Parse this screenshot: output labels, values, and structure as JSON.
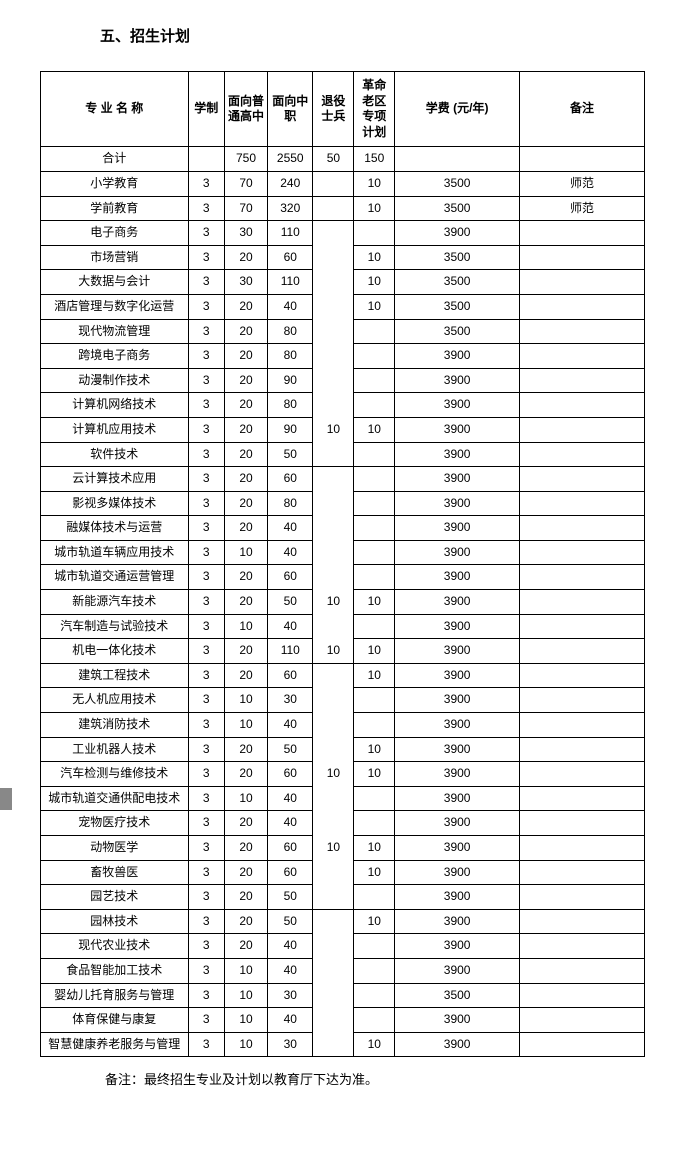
{
  "title": "五、招生计划",
  "headers": {
    "name": "专 业 名 称",
    "xuezhi": "学制",
    "col1": "面向普通高中",
    "col2": "面向中职",
    "col3": "退役士兵",
    "col4": "革命老区专项计划",
    "fee": "学费\n(元/年)",
    "note": "备注"
  },
  "rows": [
    {
      "g": 0,
      "name": "合计",
      "xz": "",
      "c1": "750",
      "c2": "2550",
      "c3": "50",
      "c4": "150",
      "fee": "",
      "note": ""
    },
    {
      "g": 1,
      "name": "小学教育",
      "xz": "3",
      "c1": "70",
      "c2": "240",
      "c3": "",
      "c4": "10",
      "fee": "3500",
      "note": "师范"
    },
    {
      "g": 2,
      "name": "学前教育",
      "xz": "3",
      "c1": "70",
      "c2": "320",
      "c3": "",
      "c4": "10",
      "fee": "3500",
      "note": "师范"
    },
    {
      "g": 3,
      "name": "电子商务",
      "xz": "3",
      "c1": "30",
      "c2": "110",
      "c3": "",
      "c4": "",
      "fee": "3900",
      "note": ""
    },
    {
      "g": 3,
      "name": "市场营销",
      "xz": "3",
      "c1": "20",
      "c2": "60",
      "c3": "",
      "c4": "10",
      "fee": "3500",
      "note": ""
    },
    {
      "g": 3,
      "name": "大数据与会计",
      "xz": "3",
      "c1": "30",
      "c2": "110",
      "c3": "",
      "c4": "10",
      "fee": "3500",
      "note": ""
    },
    {
      "g": 3,
      "name": "酒店管理与数字化运营",
      "xz": "3",
      "c1": "20",
      "c2": "40",
      "c3": "",
      "c4": "10",
      "fee": "3500",
      "note": ""
    },
    {
      "g": 3,
      "name": "现代物流管理",
      "xz": "3",
      "c1": "20",
      "c2": "80",
      "c3": "",
      "c4": "",
      "fee": "3500",
      "note": ""
    },
    {
      "g": 3,
      "name": "跨境电子商务",
      "xz": "3",
      "c1": "20",
      "c2": "80",
      "c3": "",
      "c4": "",
      "fee": "3900",
      "note": ""
    },
    {
      "g": 3,
      "name": "动漫制作技术",
      "xz": "3",
      "c1": "20",
      "c2": "90",
      "c3": "",
      "c4": "",
      "fee": "3900",
      "note": ""
    },
    {
      "g": 3,
      "name": "计算机网络技术",
      "xz": "3",
      "c1": "20",
      "c2": "80",
      "c3": "",
      "c4": "",
      "fee": "3900",
      "note": ""
    },
    {
      "g": 3,
      "name": "计算机应用技术",
      "xz": "3",
      "c1": "20",
      "c2": "90",
      "c3": "10",
      "c4": "10",
      "fee": "3900",
      "note": ""
    },
    {
      "g": 3,
      "name": "软件技术",
      "xz": "3",
      "c1": "20",
      "c2": "50",
      "c3": "",
      "c4": "",
      "fee": "3900",
      "note": ""
    },
    {
      "g": 4,
      "name": "云计算技术应用",
      "xz": "3",
      "c1": "20",
      "c2": "60",
      "c3": "",
      "c4": "",
      "fee": "3900",
      "note": ""
    },
    {
      "g": 4,
      "name": "影视多媒体技术",
      "xz": "3",
      "c1": "20",
      "c2": "80",
      "c3": "",
      "c4": "",
      "fee": "3900",
      "note": ""
    },
    {
      "g": 4,
      "name": "融媒体技术与运营",
      "xz": "3",
      "c1": "20",
      "c2": "40",
      "c3": "",
      "c4": "",
      "fee": "3900",
      "note": ""
    },
    {
      "g": 4,
      "name": "城市轨道车辆应用技术",
      "xz": "3",
      "c1": "10",
      "c2": "40",
      "c3": "",
      "c4": "",
      "fee": "3900",
      "note": ""
    },
    {
      "g": 4,
      "name": "城市轨道交通运营管理",
      "xz": "3",
      "c1": "20",
      "c2": "60",
      "c3": "",
      "c4": "",
      "fee": "3900",
      "note": ""
    },
    {
      "g": 4,
      "name": "新能源汽车技术",
      "xz": "3",
      "c1": "20",
      "c2": "50",
      "c3": "10",
      "c4": "10",
      "fee": "3900",
      "note": ""
    },
    {
      "g": 4,
      "name": "汽车制造与试验技术",
      "xz": "3",
      "c1": "10",
      "c2": "40",
      "c3": "",
      "c4": "",
      "fee": "3900",
      "note": ""
    },
    {
      "g": 4,
      "name": "机电一体化技术",
      "xz": "3",
      "c1": "20",
      "c2": "110",
      "c3": "10",
      "c4": "10",
      "fee": "3900",
      "note": ""
    },
    {
      "g": 5,
      "name": "建筑工程技术",
      "xz": "3",
      "c1": "20",
      "c2": "60",
      "c3": "",
      "c4": "10",
      "fee": "3900",
      "note": ""
    },
    {
      "g": 5,
      "name": "无人机应用技术",
      "xz": "3",
      "c1": "10",
      "c2": "30",
      "c3": "",
      "c4": "",
      "fee": "3900",
      "note": ""
    },
    {
      "g": 5,
      "name": "建筑消防技术",
      "xz": "3",
      "c1": "10",
      "c2": "40",
      "c3": "",
      "c4": "",
      "fee": "3900",
      "note": ""
    },
    {
      "g": 5,
      "name": "工业机器人技术",
      "xz": "3",
      "c1": "20",
      "c2": "50",
      "c3": "",
      "c4": "10",
      "fee": "3900",
      "note": ""
    },
    {
      "g": 5,
      "name": "汽车检测与维修技术",
      "xz": "3",
      "c1": "20",
      "c2": "60",
      "c3": "10",
      "c4": "10",
      "fee": "3900",
      "note": ""
    },
    {
      "g": 5,
      "name": "城市轨道交通供配电技术",
      "xz": "3",
      "c1": "10",
      "c2": "40",
      "c3": "",
      "c4": "",
      "fee": "3900",
      "note": ""
    },
    {
      "g": 5,
      "name": "宠物医疗技术",
      "xz": "3",
      "c1": "20",
      "c2": "40",
      "c3": "",
      "c4": "",
      "fee": "3900",
      "note": ""
    },
    {
      "g": 5,
      "name": "动物医学",
      "xz": "3",
      "c1": "20",
      "c2": "60",
      "c3": "10",
      "c4": "10",
      "fee": "3900",
      "note": ""
    },
    {
      "g": 5,
      "name": "畜牧兽医",
      "xz": "3",
      "c1": "20",
      "c2": "60",
      "c3": "",
      "c4": "10",
      "fee": "3900",
      "note": ""
    },
    {
      "g": 5,
      "name": "园艺技术",
      "xz": "3",
      "c1": "20",
      "c2": "50",
      "c3": "",
      "c4": "",
      "fee": "3900",
      "note": ""
    },
    {
      "g": 6,
      "name": "园林技术",
      "xz": "3",
      "c1": "20",
      "c2": "50",
      "c3": "",
      "c4": "10",
      "fee": "3900",
      "note": ""
    },
    {
      "g": 6,
      "name": "现代农业技术",
      "xz": "3",
      "c1": "20",
      "c2": "40",
      "c3": "",
      "c4": "",
      "fee": "3900",
      "note": ""
    },
    {
      "g": 6,
      "name": "食品智能加工技术",
      "xz": "3",
      "c1": "10",
      "c2": "40",
      "c3": "",
      "c4": "",
      "fee": "3900",
      "note": ""
    },
    {
      "g": 6,
      "name": "婴幼儿托育服务与管理",
      "xz": "3",
      "c1": "10",
      "c2": "30",
      "c3": "",
      "c4": "",
      "fee": "3500",
      "note": ""
    },
    {
      "g": 6,
      "name": "体育保健与康复",
      "xz": "3",
      "c1": "10",
      "c2": "40",
      "c3": "",
      "c4": "",
      "fee": "3900",
      "note": ""
    },
    {
      "g": 6,
      "name": "智慧健康养老服务与管理",
      "xz": "3",
      "c1": "10",
      "c2": "30",
      "c3": "",
      "c4": "10",
      "fee": "3900",
      "note": ""
    }
  ],
  "footnote": "备注：最终招生专业及计划以教育厅下达为准。"
}
